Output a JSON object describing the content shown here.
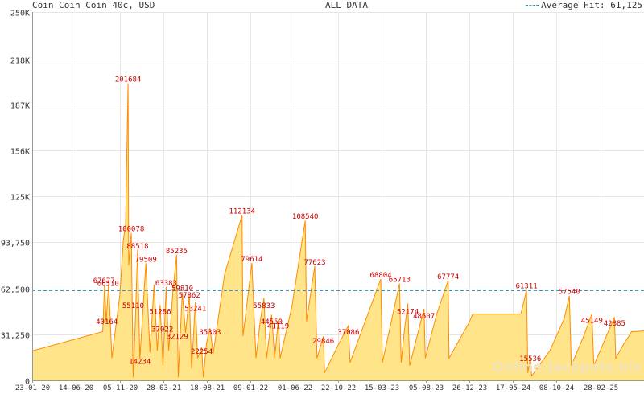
{
  "header": {
    "title": "Coin Coin Coin 40c, USD",
    "center": "ALL DATA",
    "legend_label": "Average Hit: 61,125"
  },
  "watermark": "Online-Jackpots.biz",
  "chart_data": {
    "type": "area",
    "title": "Coin Coin Coin 40c, USD",
    "subtitle": "ALL DATA",
    "xlabel": "",
    "ylabel": "",
    "ylim": [
      0,
      250000
    ],
    "y_ticks": [
      0,
      31250,
      62500,
      93750,
      125000,
      156000,
      187000,
      218000,
      250000
    ],
    "y_tick_labels": [
      "0",
      "31,250",
      "62,500",
      "93,750",
      "125K",
      "156K",
      "187K",
      "218K",
      "250K"
    ],
    "x_tick_labels": [
      "23-01-20",
      "14-06-20",
      "05-11-20",
      "28-03-21",
      "18-08-21",
      "09-01-22",
      "01-06-22",
      "22-10-22",
      "15-03-23",
      "05-08-23",
      "26-12-23",
      "17-05-24",
      "08-10-24",
      "28-02-25"
    ],
    "x_range": [
      "2020-01-23",
      "2025-05-03"
    ],
    "average_line": 61125,
    "grid": true,
    "legend_position": "top-right",
    "colors": {
      "fill": "#ffe48a",
      "line": "#ff8c00",
      "average": "#3399cc",
      "label": "#cc0000"
    },
    "series_points": [
      [
        "2020-01-23",
        20000
      ],
      [
        "2020-09-01",
        33000
      ],
      [
        "2020-09-07",
        65000
      ],
      [
        "2020-09-12",
        40000
      ],
      [
        "2020-09-20",
        66000
      ],
      [
        "2020-09-30",
        15000
      ],
      [
        "2020-10-25",
        58000
      ],
      [
        "2020-11-05",
        95000
      ],
      [
        "2020-11-12",
        106000
      ],
      [
        "2020-11-20",
        201684
      ],
      [
        "2020-11-22",
        78000
      ],
      [
        "2020-11-30",
        100078
      ],
      [
        "2020-12-06",
        2000
      ],
      [
        "2020-12-12",
        35000
      ],
      [
        "2020-12-20",
        88518
      ],
      [
        "2020-12-27",
        14234
      ],
      [
        "2021-01-15",
        79509
      ],
      [
        "2021-01-28",
        19000
      ],
      [
        "2021-02-10",
        65000
      ],
      [
        "2021-02-20",
        20000
      ],
      [
        "2021-03-01",
        51286
      ],
      [
        "2021-03-10",
        10000
      ],
      [
        "2021-03-20",
        63383
      ],
      [
        "2021-03-28",
        20000
      ],
      [
        "2021-04-10",
        60000
      ],
      [
        "2021-04-22",
        85235
      ],
      [
        "2021-04-27",
        2000
      ],
      [
        "2021-05-10",
        59810
      ],
      [
        "2021-05-20",
        32129
      ],
      [
        "2021-06-01",
        57862
      ],
      [
        "2021-06-08",
        8000
      ],
      [
        "2021-06-20",
        53241
      ],
      [
        "2021-06-27",
        15000
      ],
      [
        "2021-07-10",
        22254
      ],
      [
        "2021-07-15",
        2000
      ],
      [
        "2021-07-25",
        25000
      ],
      [
        "2021-08-05",
        35303
      ],
      [
        "2021-08-15",
        18000
      ],
      [
        "2021-09-20",
        72000
      ],
      [
        "2021-11-14",
        112134
      ],
      [
        "2021-11-17",
        30000
      ],
      [
        "2021-12-15",
        79614
      ],
      [
        "2021-12-28",
        15000
      ],
      [
        "2022-01-10",
        40000
      ],
      [
        "2022-01-22",
        55833
      ],
      [
        "2022-01-30",
        15000
      ],
      [
        "2022-02-08",
        30000
      ],
      [
        "2022-02-15",
        44550
      ],
      [
        "2022-02-25",
        15000
      ],
      [
        "2022-03-08",
        41119
      ],
      [
        "2022-03-14",
        15000
      ],
      [
        "2022-04-20",
        50000
      ],
      [
        "2022-06-01",
        108540
      ],
      [
        "2022-06-05",
        40000
      ],
      [
        "2022-07-01",
        77623
      ],
      [
        "2022-07-08",
        15000
      ],
      [
        "2022-07-15",
        20000
      ],
      [
        "2022-07-28",
        29846
      ],
      [
        "2022-08-01",
        5000
      ],
      [
        "2022-09-15",
        25000
      ],
      [
        "2022-10-15",
        37086
      ],
      [
        "2022-10-20",
        12000
      ],
      [
        "2023-01-25",
        68804
      ],
      [
        "2023-01-30",
        12000
      ],
      [
        "2023-03-25",
        65713
      ],
      [
        "2023-03-30",
        12000
      ],
      [
        "2023-04-10",
        35000
      ],
      [
        "2023-04-20",
        52174
      ],
      [
        "2023-04-26",
        10000
      ],
      [
        "2023-06-10",
        48507
      ],
      [
        "2023-06-14",
        15000
      ],
      [
        "2023-07-20",
        45000
      ],
      [
        "2023-08-25",
        67774
      ],
      [
        "2023-08-28",
        15000
      ],
      [
        "2023-11-01",
        40000
      ],
      [
        "2023-11-10",
        45000
      ],
      [
        "2024-04-10",
        45000
      ],
      [
        "2024-04-28",
        61311
      ],
      [
        "2024-05-02",
        5000
      ],
      [
        "2024-05-10",
        15536
      ],
      [
        "2024-05-14",
        3000
      ],
      [
        "2024-07-10",
        20000
      ],
      [
        "2024-08-25",
        42000
      ],
      [
        "2024-09-10",
        57540
      ],
      [
        "2024-09-16",
        10000
      ],
      [
        "2024-10-25",
        30000
      ],
      [
        "2024-11-20",
        45149
      ],
      [
        "2024-11-26",
        10000
      ],
      [
        "2025-01-30",
        42885
      ],
      [
        "2025-02-03",
        15000
      ],
      [
        "2025-03-01",
        25000
      ],
      [
        "2025-03-25",
        33000
      ],
      [
        "2025-05-03",
        33500
      ]
    ],
    "data_labels": [
      {
        "text": "67677",
        "x": "2020-09-05",
        "y": 65000
      },
      {
        "text": "66510",
        "x": "2020-09-18",
        "y": 63000
      },
      {
        "text": "40164",
        "x": "2020-09-14",
        "y": 37000
      },
      {
        "text": "201684",
        "x": "2020-11-20",
        "y": 201684
      },
      {
        "text": "100078",
        "x": "2020-11-30",
        "y": 100078
      },
      {
        "text": "88518",
        "x": "2020-12-20",
        "y": 88518
      },
      {
        "text": "55110",
        "x": "2020-12-06",
        "y": 48000
      },
      {
        "text": "14234",
        "x": "2020-12-27",
        "y": 10000
      },
      {
        "text": "79509",
        "x": "2021-01-15",
        "y": 79509
      },
      {
        "text": "51286",
        "x": "2021-03-01",
        "y": 44000
      },
      {
        "text": "37022",
        "x": "2021-03-08",
        "y": 32000
      },
      {
        "text": "63383",
        "x": "2021-03-20",
        "y": 63383
      },
      {
        "text": "85235",
        "x": "2021-04-22",
        "y": 85235
      },
      {
        "text": "32129",
        "x": "2021-04-24",
        "y": 27000
      },
      {
        "text": "59810",
        "x": "2021-05-10",
        "y": 59810
      },
      {
        "text": "57862",
        "x": "2021-06-01",
        "y": 55000
      },
      {
        "text": "53241",
        "x": "2021-06-20",
        "y": 46000
      },
      {
        "text": "22254",
        "x": "2021-07-10",
        "y": 17000
      },
      {
        "text": "35303",
        "x": "2021-08-05",
        "y": 30000
      },
      {
        "text": "112134",
        "x": "2021-11-14",
        "y": 112134
      },
      {
        "text": "79614",
        "x": "2021-12-15",
        "y": 79614
      },
      {
        "text": "55833",
        "x": "2022-01-22",
        "y": 48000
      },
      {
        "text": "44550",
        "x": "2022-02-15",
        "y": 37000
      },
      {
        "text": "41119",
        "x": "2022-03-08",
        "y": 34000
      },
      {
        "text": "108540",
        "x": "2022-06-01",
        "y": 108540
      },
      {
        "text": "77623",
        "x": "2022-07-01",
        "y": 77623
      },
      {
        "text": "29846",
        "x": "2022-07-28",
        "y": 24000
      },
      {
        "text": "37086",
        "x": "2022-10-15",
        "y": 30000
      },
      {
        "text": "68804",
        "x": "2023-01-25",
        "y": 68804
      },
      {
        "text": "65713",
        "x": "2023-03-25",
        "y": 65713
      },
      {
        "text": "52174",
        "x": "2023-04-20",
        "y": 44000
      },
      {
        "text": "48507",
        "x": "2023-06-10",
        "y": 41000
      },
      {
        "text": "67774",
        "x": "2023-08-25",
        "y": 67774
      },
      {
        "text": "61311",
        "x": "2024-04-28",
        "y": 61311
      },
      {
        "text": "15536",
        "x": "2024-05-10",
        "y": 12000
      },
      {
        "text": "57540",
        "x": "2024-09-10",
        "y": 57540
      },
      {
        "text": "45149",
        "x": "2024-11-20",
        "y": 38000
      },
      {
        "text": "42885",
        "x": "2025-01-30",
        "y": 36000
      }
    ]
  }
}
